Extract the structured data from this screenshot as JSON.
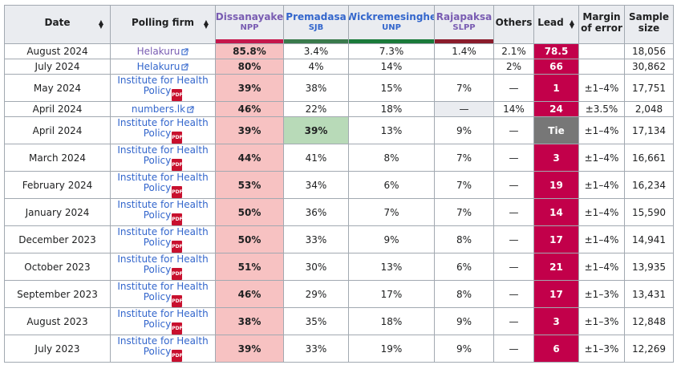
{
  "colors": {
    "npp": "#c5174c",
    "sjb": "#3a6e3d",
    "unp": "#1f7a37",
    "slpp": "#8b1a2b",
    "lead_bg": "#c2004a",
    "tie_bg": "#777777",
    "leader_cell": "#f7c2c2",
    "sjb_tie_cell": "#b8dab8",
    "empty_cell": "#eaecf0"
  },
  "headers": {
    "date": "Date",
    "firm": "Polling firm",
    "candidates": [
      {
        "name": "Dissanayake",
        "party": "NPP",
        "name_color": "#795cb2",
        "bar": "#c5174c"
      },
      {
        "name": "Premadasa",
        "party": "SJB",
        "name_color": "#3366cc",
        "bar": "#3a7a4c"
      },
      {
        "name": "Wickremesinghe",
        "party": "UNP",
        "name_color": "#3366cc",
        "bar": "#1a7a3a"
      },
      {
        "name": "Rajapaksa",
        "party": "SLPP",
        "name_color": "#795cb2",
        "bar": "#8a1c2c"
      }
    ],
    "others": "Others",
    "lead": "Lead",
    "margin_line1": "Margin",
    "margin_line2": "of error",
    "sample_line1": "Sample",
    "sample_line2": "size"
  },
  "rows": [
    {
      "date": "August 2024",
      "firm_lines": [
        "Helakuru"
      ],
      "firm_icon": "external-link",
      "visited": true,
      "dissa": "85.8%",
      "prem": "3.4%",
      "wick": "7.3%",
      "raja": "1.4%",
      "others": "2.1%",
      "lead": "78.5",
      "margin": "",
      "sample": "18,056"
    },
    {
      "date": "July 2024",
      "firm_lines": [
        "Helakuru"
      ],
      "firm_icon": "external-link",
      "visited": false,
      "dissa": "80%",
      "prem": "4%",
      "wick": "14%",
      "raja": "",
      "others": "2%",
      "lead": "66",
      "margin": "",
      "sample": "30,862"
    },
    {
      "date": "May 2024",
      "firm_lines": [
        "Institute for Health",
        "Policy"
      ],
      "firm_icon": "pdf",
      "dissa": "39%",
      "prem": "38%",
      "wick": "15%",
      "raja": "7%",
      "others": "—",
      "lead": "1",
      "margin": "±1–4%",
      "sample": "17,751"
    },
    {
      "date": "April 2024",
      "firm_lines": [
        "numbers.lk"
      ],
      "firm_icon": "external-link",
      "visited": false,
      "dissa": "46%",
      "prem": "22%",
      "wick": "18%",
      "raja": "—",
      "raja_grey": true,
      "others": "14%",
      "lead": "24",
      "margin": "±3.5%",
      "sample": "2,048"
    },
    {
      "date": "April 2024",
      "firm_lines": [
        "Institute for Health",
        "Policy"
      ],
      "firm_icon": "pdf",
      "dissa": "39%",
      "prem": "39%",
      "prem_tie": true,
      "wick": "13%",
      "raja": "9%",
      "others": "—",
      "lead": "Tie",
      "tie": true,
      "margin": "±1–4%",
      "sample": "17,134"
    },
    {
      "date": "March 2024",
      "firm_lines": [
        "Institute for Health",
        "Policy"
      ],
      "firm_icon": "pdf",
      "dissa": "44%",
      "prem": "41%",
      "wick": "8%",
      "raja": "7%",
      "others": "—",
      "lead": "3",
      "margin": "±1–4%",
      "sample": "16,661"
    },
    {
      "date": "February 2024",
      "firm_lines": [
        "Institute for Health",
        "Policy"
      ],
      "firm_icon": "pdf",
      "dissa": "53%",
      "prem": "34%",
      "wick": "6%",
      "raja": "7%",
      "others": "—",
      "lead": "19",
      "margin": "±1–4%",
      "sample": "16,234"
    },
    {
      "date": "January 2024",
      "firm_lines": [
        "Institute for Health",
        "Policy"
      ],
      "firm_icon": "pdf",
      "dissa": "50%",
      "prem": "36%",
      "wick": "7%",
      "raja": "7%",
      "others": "—",
      "lead": "14",
      "margin": "±1–4%",
      "sample": "15,590"
    },
    {
      "date": "December 2023",
      "firm_lines": [
        "Institute for Health",
        "Policy"
      ],
      "firm_icon": "pdf",
      "dissa": "50%",
      "prem": "33%",
      "wick": "9%",
      "raja": "8%",
      "others": "—",
      "lead": "17",
      "margin": "±1–4%",
      "sample": "14,941"
    },
    {
      "date": "October 2023",
      "firm_lines": [
        "Institute for Health",
        "Policy"
      ],
      "firm_icon": "pdf",
      "dissa": "51%",
      "prem": "30%",
      "wick": "13%",
      "raja": "6%",
      "others": "—",
      "lead": "21",
      "margin": "±1–4%",
      "sample": "13,935"
    },
    {
      "date": "September 2023",
      "firm_lines": [
        "Institute for Health",
        "Policy"
      ],
      "firm_icon": "pdf",
      "dissa": "46%",
      "prem": "29%",
      "wick": "17%",
      "raja": "8%",
      "others": "—",
      "lead": "17",
      "margin": "±1–3%",
      "sample": "13,431"
    },
    {
      "date": "August 2023",
      "firm_lines": [
        "Institute for Health",
        "Policy"
      ],
      "firm_icon": "pdf",
      "dissa": "38%",
      "prem": "35%",
      "wick": "18%",
      "raja": "9%",
      "others": "—",
      "lead": "3",
      "margin": "±1–3%",
      "sample": "12,848"
    },
    {
      "date": "July 2023",
      "firm_lines": [
        "Institute for Health",
        "Policy"
      ],
      "firm_icon": "pdf",
      "dissa": "39%",
      "prem": "33%",
      "wick": "19%",
      "raja": "9%",
      "others": "—",
      "lead": "6",
      "margin": "±1–3%",
      "sample": "12,269"
    }
  ]
}
